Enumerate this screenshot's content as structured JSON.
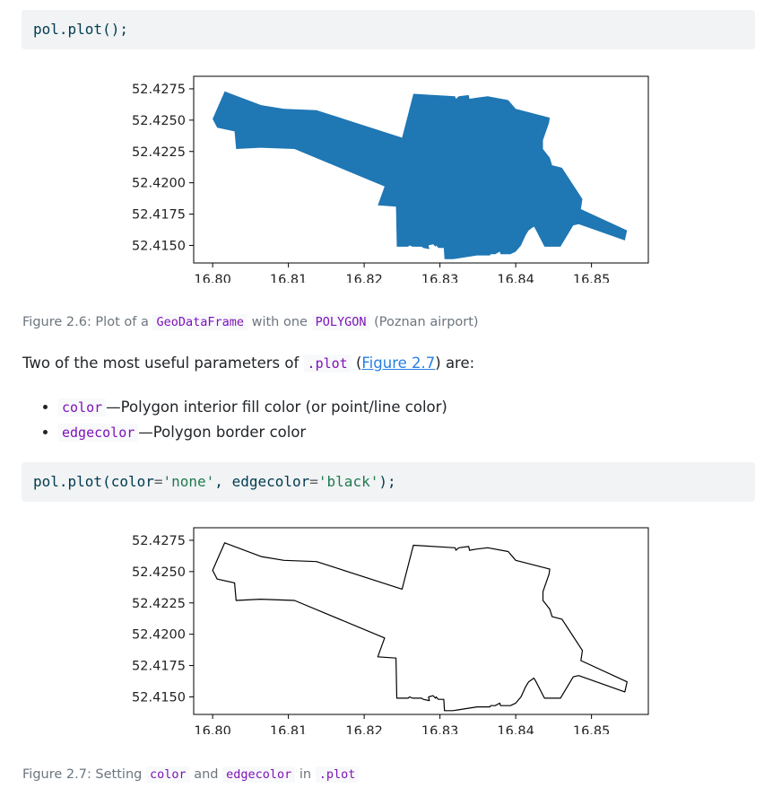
{
  "code_blocks": [
    {
      "tokens": [
        {
          "t": "pol.plot();",
          "c": "kw"
        }
      ]
    },
    {
      "tokens": [
        {
          "t": "pol.plot(color",
          "c": "kw"
        },
        {
          "t": "=",
          "c": "op"
        },
        {
          "t": "'none'",
          "c": "str"
        },
        {
          "t": ", edgecolor",
          "c": "kw"
        },
        {
          "t": "=",
          "c": "op"
        },
        {
          "t": "'black'",
          "c": "str"
        },
        {
          "t": ");",
          "c": "kw"
        }
      ]
    }
  ],
  "figure1": {
    "caption_prefix": "Figure 2.6: Plot of a ",
    "caption_code1": "GeoDataFrame",
    "caption_mid": " with one ",
    "caption_code2": "POLYGON",
    "caption_suffix": " (Poznan airport)"
  },
  "paragraph": {
    "prefix": "Two of the most useful parameters of ",
    "code": ".plot",
    "open": " (",
    "link": "Figure 2.7",
    "suffix": ") are:"
  },
  "bullets": [
    {
      "code": "color",
      "text": "—Polygon interior fill color (or point/line color)"
    },
    {
      "code": "edgecolor",
      "text": "—Polygon border color"
    }
  ],
  "figure2": {
    "caption_prefix": "Figure 2.7: Setting ",
    "caption_code1": "color",
    "caption_mid1": " and ",
    "caption_code2": "edgecolor",
    "caption_mid2": " in ",
    "caption_code3": ".plot"
  },
  "chart_data": [
    {
      "type": "map-polygon",
      "fill": "#1f77b4",
      "edge": "none",
      "xlim": [
        16.7975,
        16.8575
      ],
      "ylim": [
        52.4136,
        52.4285
      ],
      "xticks": [
        "16.80",
        "16.81",
        "16.82",
        "16.83",
        "16.84",
        "16.85"
      ],
      "xtick_values": [
        16.8,
        16.81,
        16.82,
        16.83,
        16.84,
        16.85
      ],
      "yticks": [
        "52.4275",
        "52.4250",
        "52.4225",
        "52.4200",
        "52.4175",
        "52.4150"
      ],
      "ytick_values": [
        52.4275,
        52.425,
        52.4225,
        52.42,
        52.4175,
        52.415
      ],
      "polygon": [
        [
          16.8016,
          52.4273
        ],
        [
          16.8064,
          52.4262
        ],
        [
          16.8094,
          52.4259
        ],
        [
          16.8137,
          52.4258
        ],
        [
          16.825,
          52.4236
        ],
        [
          16.8265,
          52.4271
        ],
        [
          16.832,
          52.4269
        ],
        [
          16.8321,
          52.4267
        ],
        [
          16.8325,
          52.4269
        ],
        [
          16.8338,
          52.427
        ],
        [
          16.8339,
          52.4267
        ],
        [
          16.8349,
          52.4268
        ],
        [
          16.8363,
          52.4269
        ],
        [
          16.839,
          52.4266
        ],
        [
          16.84,
          52.4259
        ],
        [
          16.8445,
          52.4252
        ],
        [
          16.8444,
          52.4248
        ],
        [
          16.8436,
          52.4234
        ],
        [
          16.8436,
          52.4227
        ],
        [
          16.8445,
          52.422
        ],
        [
          16.8448,
          52.4214
        ],
        [
          16.8461,
          52.4212
        ],
        [
          16.8488,
          52.4187
        ],
        [
          16.8486,
          52.4179
        ],
        [
          16.8547,
          52.4162
        ],
        [
          16.8544,
          52.4154
        ],
        [
          16.8483,
          52.4167
        ],
        [
          16.8476,
          52.4166
        ],
        [
          16.8459,
          52.4149
        ],
        [
          16.8438,
          52.4149
        ],
        [
          16.8426,
          52.4163
        ],
        [
          16.8424,
          52.4165
        ],
        [
          16.8417,
          52.4162
        ],
        [
          16.8413,
          52.4158
        ],
        [
          16.8407,
          52.415
        ],
        [
          16.84,
          52.4145
        ],
        [
          16.8393,
          52.4143
        ],
        [
          16.838,
          52.4143
        ],
        [
          16.8379,
          52.4145
        ],
        [
          16.8373,
          52.4143
        ],
        [
          16.8367,
          52.4143
        ],
        [
          16.8366,
          52.4142
        ],
        [
          16.835,
          52.4142
        ],
        [
          16.8349,
          52.4142
        ],
        [
          16.8328,
          52.414
        ],
        [
          16.8317,
          52.4139
        ],
        [
          16.8306,
          52.4139
        ],
        [
          16.8305,
          52.4148
        ],
        [
          16.8298,
          52.4148
        ],
        [
          16.8295,
          52.415
        ],
        [
          16.8294,
          52.4149
        ],
        [
          16.8291,
          52.4151
        ],
        [
          16.8285,
          52.415
        ],
        [
          16.8286,
          52.4147
        ],
        [
          16.8278,
          52.4148
        ],
        [
          16.8276,
          52.4149
        ],
        [
          16.8264,
          52.4149
        ],
        [
          16.826,
          52.415
        ],
        [
          16.8258,
          52.4149
        ],
        [
          16.8243,
          52.4149
        ],
        [
          16.8242,
          52.4181
        ],
        [
          16.8218,
          52.4182
        ],
        [
          16.8227,
          52.4197
        ],
        [
          16.8108,
          52.4227
        ],
        [
          16.8063,
          52.4228
        ],
        [
          16.8031,
          52.4227
        ],
        [
          16.8029,
          52.4241
        ],
        [
          16.8006,
          52.4244
        ],
        [
          16.8,
          52.4251
        ],
        [
          16.8016,
          52.4273
        ]
      ]
    },
    {
      "type": "map-polygon",
      "fill": "none",
      "edge": "#000000",
      "xlim": [
        16.7975,
        16.8575
      ],
      "ylim": [
        52.4136,
        52.4285
      ],
      "xticks": [
        "16.80",
        "16.81",
        "16.82",
        "16.83",
        "16.84",
        "16.85"
      ],
      "xtick_values": [
        16.8,
        16.81,
        16.82,
        16.83,
        16.84,
        16.85
      ],
      "yticks": [
        "52.4275",
        "52.4250",
        "52.4225",
        "52.4200",
        "52.4175",
        "52.4150"
      ],
      "ytick_values": [
        52.4275,
        52.425,
        52.4225,
        52.42,
        52.4175,
        52.415
      ],
      "polygon_ref": 0
    }
  ]
}
